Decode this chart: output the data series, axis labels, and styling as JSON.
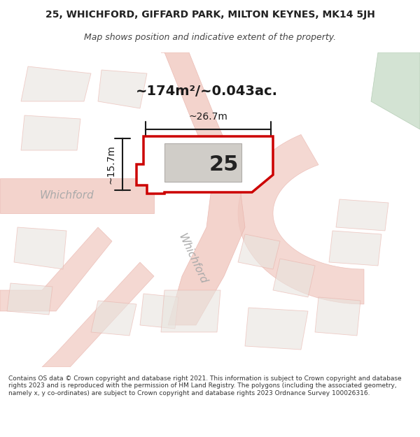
{
  "title_line1": "25, WHICHFORD, GIFFARD PARK, MILTON KEYNES, MK14 5JH",
  "title_line2": "Map shows position and indicative extent of the property.",
  "footer_text": "Contains OS data © Crown copyright and database right 2021. This information is subject to Crown copyright and database rights 2023 and is reproduced with the permission of HM Land Registry. The polygons (including the associated geometry, namely x, y co-ordinates) are subject to Crown copyright and database rights 2023 Ordnance Survey 100026316.",
  "area_label": "~174m²/~0.043ac.",
  "property_number": "25",
  "dim_width": "~26.7m",
  "dim_height": "~15.7m",
  "bg_color": "#ffffff",
  "map_bg": "#f5f5f0",
  "road_color": "#f0c8c0",
  "property_fill": "#ffffff",
  "property_outline": "#cc0000",
  "building_fill": "#d8d8d8",
  "green_fill": "#d4e8d8",
  "road_line_color": "#e8b0a8",
  "dim_line_color": "#1a1a1a",
  "road_label_color": "#aaaaaa",
  "street_label": "Whichford"
}
